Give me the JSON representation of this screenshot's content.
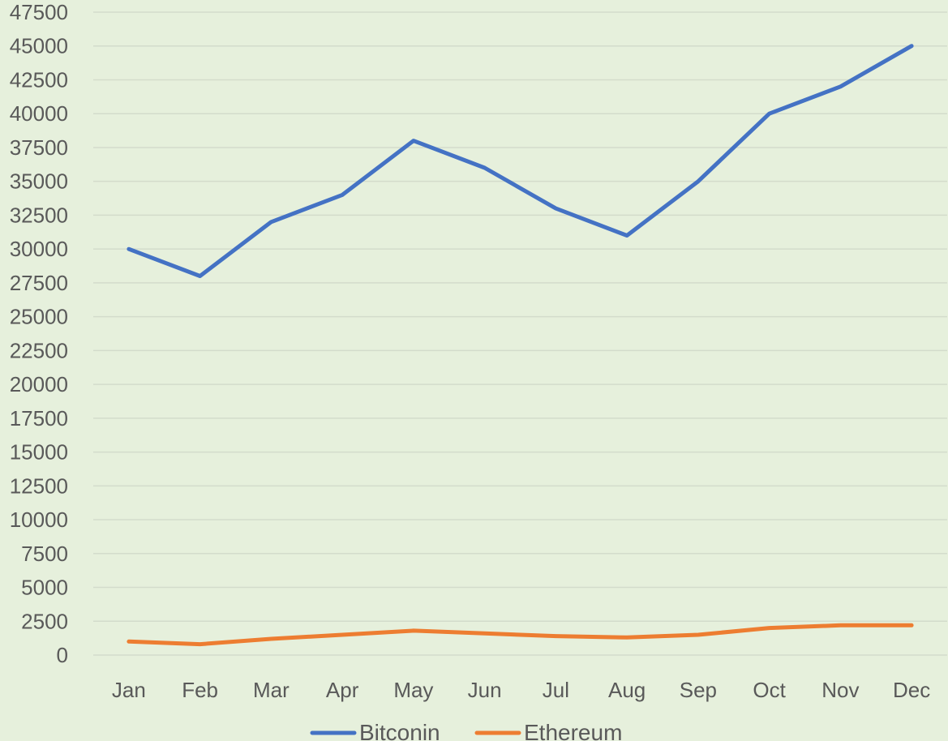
{
  "chart_data": {
    "type": "line",
    "title": "",
    "xlabel": "",
    "ylabel": "",
    "categories": [
      "Jan",
      "Feb",
      "Mar",
      "Apr",
      "May",
      "Jun",
      "Jul",
      "Aug",
      "Sep",
      "Oct",
      "Nov",
      "Dec"
    ],
    "ylim": [
      0,
      47500
    ],
    "ytick_step": 2500,
    "grid": true,
    "legend_position": "bottom",
    "series": [
      {
        "name": "Bitconin",
        "color": "#4472c4",
        "values": [
          30000,
          28000,
          32000,
          34000,
          38000,
          36000,
          33000,
          31000,
          35000,
          40000,
          42000,
          45000
        ]
      },
      {
        "name": "Ethereum",
        "color": "#ed7d31",
        "values": [
          1000,
          800,
          1200,
          1500,
          1800,
          1600,
          1400,
          1300,
          1500,
          2000,
          2200,
          2200
        ]
      }
    ],
    "background": "#e6f0dc"
  }
}
